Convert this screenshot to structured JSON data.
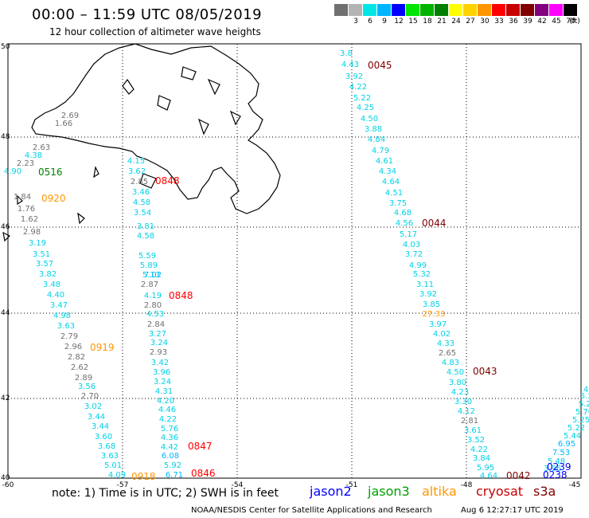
{
  "header": {
    "title": "00:00 – 11:59 UTC 08/05/2019",
    "subtitle": "12 hour collection of altimeter wave heights"
  },
  "scale": {
    "unit": "(ft)",
    "bins": [
      {
        "label": "",
        "color": "#707070"
      },
      {
        "label": "3",
        "color": "#b4b4b4"
      },
      {
        "label": "6",
        "color": "#00e6e6"
      },
      {
        "label": "9",
        "color": "#00b4ff"
      },
      {
        "label": "12",
        "color": "#0000ff"
      },
      {
        "label": "15",
        "color": "#00e600"
      },
      {
        "label": "18",
        "color": "#00b400"
      },
      {
        "label": "21",
        "color": "#008000"
      },
      {
        "label": "24",
        "color": "#ffff00"
      },
      {
        "label": "27",
        "color": "#ffd200"
      },
      {
        "label": "30",
        "color": "#ff9600"
      },
      {
        "label": "33",
        "color": "#ff0000"
      },
      {
        "label": "36",
        "color": "#c80000"
      },
      {
        "label": "39",
        "color": "#800000"
      },
      {
        "label": "42",
        "color": "#800080"
      },
      {
        "label": "45",
        "color": "#ff00ff"
      },
      {
        "label": "70",
        "color": "#000000"
      }
    ]
  },
  "axes": {
    "lon_ticks": [
      "-60",
      "-57",
      "-54",
      "-51",
      "-48",
      "-45"
    ],
    "lat_ticks": [
      "50",
      "48",
      "46",
      "44",
      "42",
      "40"
    ]
  },
  "tracks": [
    {
      "id": "t1",
      "time": "0516",
      "time_color": "#008000",
      "values": [
        "2.69",
        "1.66",
        "2.63",
        "4.38",
        "2.23",
        "4.90"
      ]
    },
    {
      "id": "t2",
      "time": "0920",
      "time_color": "#ff9600",
      "values": [
        "1.84",
        "1.76",
        "1.62",
        "2.98",
        "3.19",
        "3.51",
        "3.57",
        "3.82",
        "3.48",
        "4.40",
        "3.47",
        "4.98",
        "3.63",
        "2.79",
        "2.96",
        "2.82",
        "2.62",
        "2.89",
        "3.56",
        "2.70",
        "3.02",
        "3.44",
        "3.44",
        "3.60",
        "3.68",
        "3.63",
        "5.01",
        "4.09"
      ]
    },
    {
      "id": "t2b",
      "time": "0919",
      "time_color": "#ff9600",
      "values": []
    },
    {
      "id": "t2c",
      "time": "0918",
      "time_color": "#ff9600",
      "values": []
    },
    {
      "id": "t3",
      "time": "0848",
      "time_color": "#ff0000",
      "values": [
        "4.15",
        "3.62",
        "2.85",
        "3.46",
        "4.58",
        "3.54",
        "3.81",
        "4.58",
        "5.59",
        "5.89",
        "5.13",
        "7.02",
        "2.87",
        "4.19",
        "2.80",
        "4.53",
        "2.84",
        "3.27",
        "3.24",
        "2.93",
        "3.42",
        "3.96",
        "3.24",
        "4.31",
        "4.20",
        "4.46",
        "4.22",
        "5.76",
        "4.36",
        "4.42",
        "6.08",
        "5.92",
        "6.71"
      ]
    },
    {
      "id": "t3b",
      "time": "0848",
      "time_color": "#ff0000",
      "values": []
    },
    {
      "id": "t3c",
      "time": "0847",
      "time_color": "#ff0000",
      "values": []
    },
    {
      "id": "t3d",
      "time": "0846",
      "time_color": "#ff0000",
      "values": []
    },
    {
      "id": "t4",
      "time": "0045",
      "time_color": "#800000",
      "values": [
        "3.8",
        "4.43",
        "3.92",
        "4.22",
        "5.22",
        "4.25",
        "4.50",
        "3.88",
        "4.84",
        "4.79",
        "4.61",
        "4.34",
        "4.64",
        "4.51",
        "3.75",
        "4.68",
        "4.56",
        "5.17",
        "4.03",
        "3.72",
        "4.99",
        "5.32",
        "3.11",
        "3.92",
        "3.85",
        "27.33",
        "3.97",
        "4.02",
        "4.33",
        "2.65",
        "4.83",
        "4.50",
        "3.80",
        "4.23",
        "3.30",
        "4.12",
        "2.81",
        "3.61",
        "3.52",
        "4.22",
        "3.84",
        "5.95",
        "4.64"
      ]
    },
    {
      "id": "t4b",
      "time": "0044",
      "time_color": "#800000",
      "values": []
    },
    {
      "id": "t4c",
      "time": "0043",
      "time_color": "#800000",
      "values": []
    },
    {
      "id": "t4d",
      "time": "0042",
      "time_color": "#800000",
      "values": []
    },
    {
      "id": "t5",
      "time": "0239",
      "time_color": "#0000ff",
      "values": [
        "3.96",
        "5.48",
        "7.53",
        "6.95",
        "5.44",
        "5.22",
        "5.25",
        "5.70",
        "5.21",
        "5.23",
        "4.93",
        "4.9"
      ]
    },
    {
      "id": "t5b",
      "time": "0238",
      "time_color": "#0000ff",
      "values": []
    }
  ],
  "footer": {
    "note": "note:  1) Time is in UTC;  2) SWH is in feet",
    "legend": [
      {
        "name": "jason2",
        "color": "#0000ff"
      },
      {
        "name": "jason3",
        "color": "#00a000"
      },
      {
        "name": "altika",
        "color": "#ff9600"
      },
      {
        "name": "cryosat",
        "color": "#c80000"
      },
      {
        "name": "s3a",
        "color": "#800000"
      }
    ],
    "credit": "NOAA/NESDIS Center for Satellite Applications and Research",
    "stamp": "Aug  6 12:27:17 UTC 2019"
  }
}
